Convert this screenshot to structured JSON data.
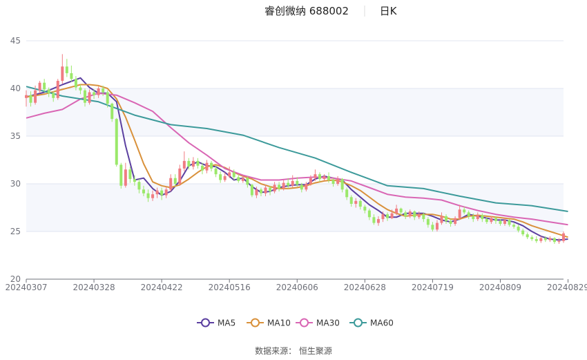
{
  "header": {
    "title": "睿创微纳 688002",
    "period": "日K"
  },
  "source": "数据来源：  恒生聚源",
  "colors": {
    "up": "#f07c82",
    "down": "#9be86a",
    "grid_band": "#f5f7fc",
    "grid_line": "#e0e6f1",
    "axis": "#6e7079",
    "MA5": "#5b3fa0",
    "MA10": "#d9913b",
    "MA30": "#d966b4",
    "MA60": "#3c9a9a"
  },
  "chart_data": {
    "type": "candlestick",
    "title": "睿创微纳 688002",
    "ylim": [
      20,
      45
    ],
    "yticks": [
      20,
      25,
      30,
      35,
      40,
      45
    ],
    "xticks": [
      "20240307",
      "20240328",
      "20240422",
      "20240516",
      "20240606",
      "20240628",
      "20240719",
      "20240809",
      "20240829"
    ],
    "xtick_index": [
      0,
      15,
      30,
      45,
      60,
      75,
      90,
      105,
      120
    ],
    "grid": true,
    "legend_position": "bottom",
    "legend": [
      "MA5",
      "MA10",
      "MA30",
      "MA60"
    ],
    "candles": [
      [
        39.0,
        39.3,
        39.8,
        38.1
      ],
      [
        39.3,
        38.5,
        39.7,
        38.1
      ],
      [
        38.5,
        39.8,
        40.3,
        38.3
      ],
      [
        39.8,
        40.6,
        40.8,
        39.5
      ],
      [
        40.6,
        39.9,
        41.0,
        39.6
      ],
      [
        39.9,
        39.5,
        40.1,
        39.1
      ],
      [
        39.5,
        39.0,
        39.7,
        38.6
      ],
      [
        39.0,
        40.8,
        41.0,
        38.8
      ],
      [
        40.8,
        42.3,
        43.6,
        40.5
      ],
      [
        42.3,
        41.6,
        43.1,
        41.2
      ],
      [
        41.6,
        41.0,
        42.4,
        40.7
      ],
      [
        41.0,
        40.1,
        41.3,
        39.8
      ],
      [
        40.1,
        39.8,
        40.4,
        39.4
      ],
      [
        39.8,
        38.5,
        40.0,
        38.1
      ],
      [
        38.5,
        39.6,
        39.9,
        38.3
      ],
      [
        39.6,
        39.3,
        39.9,
        38.9
      ],
      [
        39.3,
        40.0,
        40.2,
        39.0
      ],
      [
        40.0,
        39.6,
        40.3,
        39.2
      ],
      [
        39.6,
        38.4,
        39.8,
        38.0
      ],
      [
        38.4,
        36.8,
        38.5,
        36.5
      ],
      [
        36.8,
        32.0,
        36.9,
        31.8
      ],
      [
        32.0,
        29.8,
        32.2,
        29.5
      ],
      [
        29.8,
        31.5,
        32.2,
        29.6
      ],
      [
        31.5,
        30.5,
        31.8,
        30.1
      ],
      [
        30.5,
        30.2,
        30.9,
        29.8
      ],
      [
        30.2,
        29.4,
        30.5,
        29.0
      ],
      [
        29.4,
        29.0,
        29.8,
        28.7
      ],
      [
        29.0,
        28.5,
        29.4,
        28.1
      ],
      [
        28.5,
        28.9,
        29.3,
        28.2
      ],
      [
        28.9,
        29.3,
        29.6,
        28.5
      ],
      [
        29.3,
        28.8,
        29.6,
        28.3
      ],
      [
        28.8,
        29.4,
        29.7,
        28.5
      ],
      [
        29.4,
        30.6,
        31.0,
        29.2
      ],
      [
        30.6,
        30.0,
        31.0,
        29.7
      ],
      [
        30.0,
        31.6,
        32.0,
        29.8
      ],
      [
        31.6,
        32.4,
        33.4,
        31.3
      ],
      [
        32.4,
        31.8,
        32.7,
        31.5
      ],
      [
        31.8,
        32.4,
        32.8,
        31.5
      ],
      [
        32.4,
        31.9,
        32.7,
        31.6
      ],
      [
        31.9,
        31.4,
        32.2,
        31.0
      ],
      [
        31.4,
        32.2,
        32.5,
        31.1
      ],
      [
        32.2,
        31.6,
        32.4,
        31.3
      ],
      [
        31.6,
        31.0,
        31.9,
        30.7
      ],
      [
        31.0,
        30.4,
        31.3,
        30.1
      ],
      [
        30.4,
        30.8,
        31.2,
        30.2
      ],
      [
        30.8,
        31.2,
        31.8,
        30.6
      ],
      [
        31.2,
        30.7,
        31.5,
        30.4
      ],
      [
        30.7,
        30.3,
        31.0,
        30.1
      ],
      [
        30.3,
        30.6,
        30.9,
        30.1
      ],
      [
        30.6,
        29.9,
        30.8,
        29.6
      ],
      [
        29.9,
        28.8,
        30.0,
        28.6
      ],
      [
        28.8,
        29.4,
        29.7,
        28.5
      ],
      [
        29.4,
        29.0,
        29.6,
        28.7
      ],
      [
        29.0,
        29.6,
        29.9,
        28.7
      ],
      [
        29.6,
        29.2,
        29.8,
        28.8
      ],
      [
        29.2,
        29.9,
        30.2,
        29.0
      ],
      [
        29.9,
        29.5,
        30.2,
        29.2
      ],
      [
        29.5,
        30.1,
        30.4,
        29.3
      ],
      [
        30.1,
        29.8,
        30.6,
        29.5
      ],
      [
        29.8,
        30.3,
        30.9,
        29.6
      ],
      [
        30.3,
        29.9,
        30.7,
        29.7
      ],
      [
        29.9,
        29.4,
        30.1,
        29.1
      ],
      [
        29.4,
        30.0,
        30.2,
        29.2
      ],
      [
        30.0,
        30.6,
        30.9,
        29.8
      ],
      [
        30.6,
        31.0,
        31.5,
        30.3
      ],
      [
        31.0,
        30.5,
        31.2,
        30.2
      ],
      [
        30.5,
        30.8,
        31.0,
        30.3
      ],
      [
        30.8,
        30.4,
        31.2,
        30.1
      ],
      [
        30.4,
        30.0,
        30.6,
        29.7
      ],
      [
        30.0,
        30.5,
        30.8,
        29.8
      ],
      [
        30.5,
        29.4,
        30.6,
        29.1
      ],
      [
        29.4,
        28.6,
        29.6,
        28.3
      ],
      [
        28.6,
        27.9,
        28.8,
        27.6
      ],
      [
        27.9,
        28.2,
        28.5,
        27.5
      ],
      [
        28.2,
        27.6,
        28.4,
        27.3
      ],
      [
        27.6,
        27.2,
        27.8,
        26.9
      ],
      [
        27.2,
        26.5,
        27.4,
        26.2
      ],
      [
        26.5,
        25.9,
        26.8,
        25.7
      ],
      [
        25.9,
        26.3,
        26.6,
        25.6
      ],
      [
        26.3,
        26.8,
        27.1,
        26.0
      ],
      [
        26.8,
        26.4,
        27.0,
        26.1
      ],
      [
        26.4,
        26.9,
        27.3,
        26.3
      ],
      [
        26.9,
        27.4,
        27.8,
        26.7
      ],
      [
        27.4,
        27.0,
        27.5,
        26.7
      ],
      [
        27.0,
        26.6,
        27.2,
        26.3
      ],
      [
        26.6,
        27.1,
        27.3,
        26.4
      ],
      [
        27.1,
        26.5,
        27.2,
        26.2
      ],
      [
        26.5,
        26.8,
        27.1,
        26.3
      ],
      [
        26.8,
        26.3,
        27.0,
        26.0
      ],
      [
        26.3,
        25.7,
        26.5,
        25.4
      ],
      [
        25.7,
        25.2,
        26.0,
        25.0
      ],
      [
        25.2,
        25.9,
        26.2,
        25.0
      ],
      [
        25.9,
        26.6,
        27.0,
        25.7
      ],
      [
        26.6,
        26.1,
        26.8,
        25.8
      ],
      [
        26.1,
        25.8,
        26.3,
        25.5
      ],
      [
        25.8,
        26.4,
        26.6,
        25.6
      ],
      [
        26.4,
        27.3,
        27.8,
        26.2
      ],
      [
        27.3,
        27.0,
        27.6,
        26.8
      ],
      [
        27.0,
        26.6,
        27.2,
        26.3
      ],
      [
        26.6,
        26.3,
        26.9,
        26.0
      ],
      [
        26.3,
        26.7,
        27.0,
        26.1
      ],
      [
        26.7,
        26.3,
        26.9,
        26.0
      ],
      [
        26.3,
        26.0,
        26.5,
        25.8
      ],
      [
        26.0,
        26.4,
        26.6,
        25.8
      ],
      [
        26.4,
        26.1,
        26.6,
        25.8
      ],
      [
        26.1,
        25.8,
        26.3,
        25.6
      ],
      [
        25.8,
        26.2,
        26.4,
        25.6
      ],
      [
        26.2,
        25.7,
        26.3,
        25.5
      ],
      [
        25.7,
        25.5,
        25.9,
        25.3
      ],
      [
        25.5,
        25.1,
        25.7,
        24.9
      ],
      [
        25.1,
        24.7,
        25.3,
        24.5
      ],
      [
        24.7,
        24.4,
        24.9,
        24.2
      ],
      [
        24.4,
        24.2,
        24.6,
        24.0
      ],
      [
        24.2,
        24.0,
        24.5,
        23.8
      ],
      [
        24.0,
        24.3,
        24.5,
        23.8
      ],
      [
        24.3,
        24.1,
        24.5,
        23.9
      ],
      [
        24.1,
        24.3,
        24.5,
        23.9
      ],
      [
        24.3,
        23.9,
        24.4,
        23.7
      ],
      [
        23.9,
        24.0,
        24.3,
        23.7
      ],
      [
        24.0,
        24.8,
        25.0,
        23.8
      ]
    ],
    "series": [
      {
        "name": "MA5",
        "x": [
          0,
          4,
          8,
          12,
          14,
          16,
          18,
          20,
          22,
          24,
          26,
          28,
          30,
          32,
          34,
          36,
          38,
          40,
          42,
          44,
          46,
          48,
          50,
          52,
          54,
          56,
          58,
          60,
          62,
          64,
          66,
          68,
          70,
          72,
          74,
          76,
          78,
          80,
          82,
          84,
          86,
          88,
          90,
          92,
          94,
          96,
          98,
          100,
          102,
          104,
          106,
          108,
          110,
          112,
          114,
          116,
          118,
          120
        ],
        "y": [
          39.1,
          39.6,
          40.4,
          41.1,
          40.1,
          39.5,
          39.5,
          38.6,
          34.0,
          30.4,
          30.6,
          29.5,
          28.8,
          29.2,
          30.3,
          31.9,
          32.3,
          31.9,
          31.8,
          31.2,
          30.4,
          30.6,
          29.7,
          29.1,
          29.2,
          29.6,
          29.8,
          29.9,
          29.9,
          30.5,
          30.8,
          30.6,
          30.4,
          29.4,
          28.6,
          27.8,
          27.2,
          26.5,
          26.5,
          26.9,
          26.9,
          26.9,
          26.6,
          26.2,
          26.0,
          26.3,
          26.8,
          26.6,
          26.4,
          26.2,
          26.2,
          26.0,
          25.6,
          25.0,
          24.5,
          24.2,
          24.1,
          24.2
        ]
      },
      {
        "name": "MA10",
        "x": [
          0,
          4,
          8,
          12,
          14,
          16,
          18,
          20,
          22,
          24,
          26,
          28,
          30,
          32,
          34,
          36,
          38,
          40,
          42,
          44,
          46,
          48,
          50,
          52,
          54,
          56,
          58,
          60,
          62,
          64,
          66,
          68,
          70,
          72,
          74,
          76,
          78,
          80,
          82,
          84,
          86,
          88,
          90,
          92,
          94,
          96,
          98,
          100,
          102,
          104,
          106,
          108,
          110,
          112,
          114,
          116,
          118,
          120
        ],
        "y": [
          39.1,
          39.4,
          39.9,
          40.4,
          40.4,
          40.3,
          40.0,
          38.9,
          37.0,
          34.6,
          32.1,
          30.2,
          29.8,
          29.6,
          29.9,
          30.5,
          31.2,
          31.8,
          32.0,
          31.7,
          31.2,
          30.8,
          30.5,
          30.0,
          29.7,
          29.5,
          29.5,
          29.6,
          29.8,
          30.1,
          30.3,
          30.4,
          30.2,
          29.8,
          29.3,
          28.6,
          27.9,
          27.3,
          26.9,
          26.6,
          26.7,
          26.8,
          26.8,
          26.6,
          26.3,
          26.3,
          26.6,
          26.7,
          26.6,
          26.5,
          26.4,
          26.3,
          26.0,
          25.6,
          25.3,
          25.0,
          24.7,
          24.4
        ]
      },
      {
        "name": "MA30",
        "x": [
          0,
          4,
          8,
          12,
          16,
          20,
          24,
          28,
          32,
          36,
          40,
          44,
          48,
          52,
          56,
          60,
          64,
          68,
          72,
          76,
          80,
          84,
          88,
          92,
          96,
          100,
          104,
          108,
          112,
          116,
          120
        ],
        "y": [
          36.9,
          37.4,
          37.8,
          38.9,
          39.5,
          39.3,
          38.5,
          37.6,
          35.9,
          34.3,
          33.0,
          31.6,
          30.9,
          30.4,
          30.4,
          30.6,
          30.7,
          30.6,
          30.3,
          29.6,
          28.9,
          28.6,
          28.5,
          28.3,
          27.7,
          27.2,
          26.8,
          26.5,
          26.3,
          26.0,
          25.7
        ]
      },
      {
        "name": "MA60",
        "x": [
          0,
          8,
          16,
          24,
          32,
          40,
          48,
          56,
          64,
          72,
          80,
          88,
          96,
          104,
          112,
          120
        ],
        "y": [
          40.2,
          39.2,
          38.6,
          37.2,
          36.2,
          35.8,
          35.1,
          33.8,
          32.7,
          31.2,
          29.8,
          29.5,
          28.7,
          28.0,
          27.7,
          27.1
        ]
      }
    ]
  }
}
